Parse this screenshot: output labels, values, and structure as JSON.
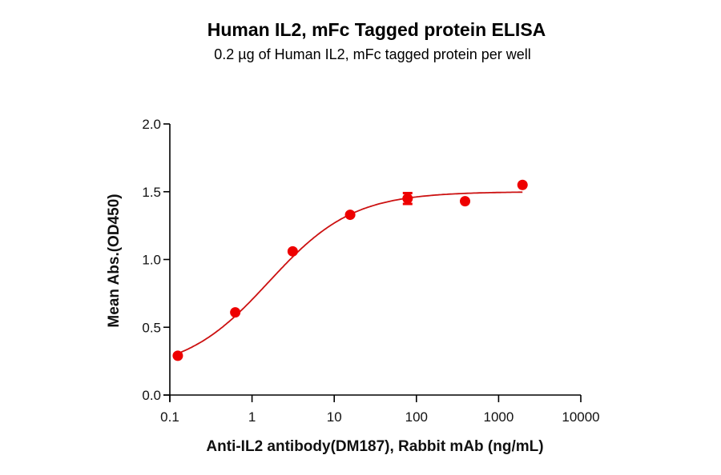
{
  "chart_data": {
    "type": "scatter",
    "title": "Human IL2, mFc Tagged protein ELISA",
    "subtitle": "0.2 µg of Human IL2, mFc tagged protein per well",
    "xlabel": "Anti-IL2 antibody(DM187), Rabbit mAb (ng/mL)",
    "ylabel": "Mean Abs.(OD450)",
    "xscale": "log",
    "xlim": [
      0.1,
      10000
    ],
    "ylim": [
      0.0,
      2.0
    ],
    "xticks": [
      "0.1",
      "1",
      "10",
      "100",
      "1000",
      "10000"
    ],
    "yticks": [
      "0.0",
      "0.5",
      "1.0",
      "1.5",
      "2.0"
    ],
    "grid": false,
    "legend": null,
    "series": [
      {
        "name": "Anti-IL2 antibody(DM187)",
        "color": "#ee0000",
        "line_color": "#cc1111",
        "x": [
          0.125,
          0.625,
          3.125,
          15.625,
          78.125,
          390.625,
          1953.125
        ],
        "y": [
          0.29,
          0.61,
          1.06,
          1.33,
          1.45,
          1.43,
          1.55
        ],
        "error": [
          0.0,
          0.0,
          0.0,
          0.0,
          0.04,
          0.0,
          0.0
        ],
        "fit": "4PL sigmoidal curve"
      }
    ]
  },
  "colors": {
    "marker": "#ee0000",
    "curve": "#cc1111",
    "axis": "#000000"
  }
}
